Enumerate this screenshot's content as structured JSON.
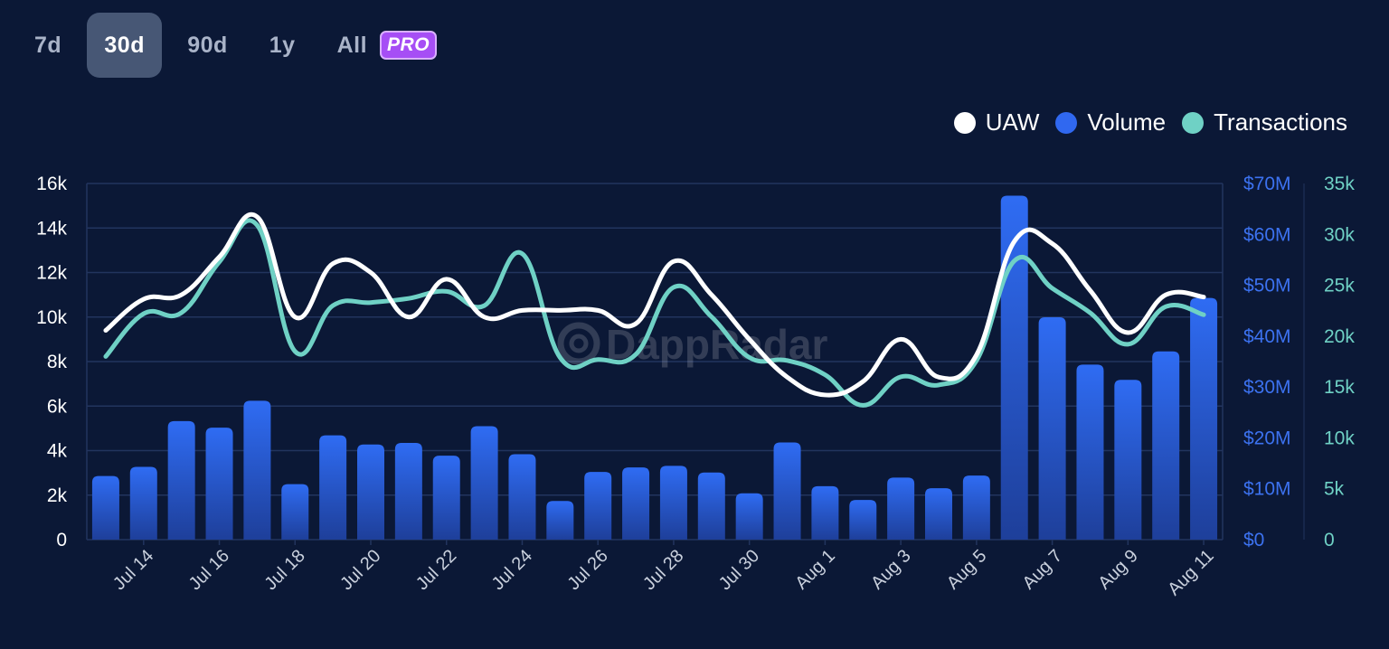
{
  "tabs": {
    "items": [
      {
        "label": "7d"
      },
      {
        "label": "30d"
      },
      {
        "label": "90d"
      },
      {
        "label": "1y"
      },
      {
        "label": "All"
      }
    ],
    "active": "30d",
    "pro_badge": "PRO"
  },
  "legend": {
    "uaw": {
      "label": "UAW",
      "color": "#ffffff"
    },
    "volume": {
      "label": "Volume",
      "color": "#3068f0"
    },
    "transactions": {
      "label": "Transactions",
      "color": "#6fd1c5"
    }
  },
  "watermark": "DappRadar",
  "chart_data": {
    "type": "bar",
    "title": "",
    "categories": [
      "Jul 13",
      "Jul 14",
      "Jul 15",
      "Jul 16",
      "Jul 17",
      "Jul 18",
      "Jul 19",
      "Jul 20",
      "Jul 21",
      "Jul 22",
      "Jul 23",
      "Jul 24",
      "Jul 25",
      "Jul 26",
      "Jul 27",
      "Jul 28",
      "Jul 29",
      "Jul 30",
      "Jul 31",
      "Aug 1",
      "Aug 2",
      "Aug 3",
      "Aug 4",
      "Aug 5",
      "Aug 6",
      "Aug 7",
      "Aug 8",
      "Aug 9",
      "Aug 10",
      "Aug 11"
    ],
    "x_tick_labels": [
      "Jul 14",
      "Jul 16",
      "Jul 18",
      "Jul 20",
      "Jul 22",
      "Jul 24",
      "Jul 26",
      "Jul 28",
      "Jul 30",
      "Aug 1",
      "Aug 3",
      "Aug 5",
      "Aug 7",
      "Aug 9",
      "Aug 11"
    ],
    "axes": {
      "uaw": {
        "range": [
          0,
          16000
        ],
        "ticks": [
          "0",
          "2k",
          "4k",
          "6k",
          "8k",
          "10k",
          "12k",
          "14k",
          "16k"
        ]
      },
      "volume": {
        "range": [
          0,
          70000000
        ],
        "ticks": [
          "$0",
          "$10M",
          "$20M",
          "$30M",
          "$40M",
          "$50M",
          "$60M",
          "$70M"
        ]
      },
      "transactions": {
        "range": [
          0,
          35000
        ],
        "ticks": [
          "0",
          "5k",
          "10k",
          "15k",
          "20k",
          "25k",
          "30k",
          "35k"
        ]
      }
    },
    "series": [
      {
        "name": "Volume",
        "type": "bar",
        "axis": "volume",
        "values": [
          12500000,
          14300000,
          23300000,
          22000000,
          27300000,
          10900000,
          20500000,
          18700000,
          19000000,
          16500000,
          22300000,
          16800000,
          7600000,
          13300000,
          14200000,
          14500000,
          13200000,
          9100000,
          19100000,
          10500000,
          7800000,
          12200000,
          10100000,
          12600000,
          67600000,
          43700000,
          34400000,
          31400000,
          37000000,
          47500000
        ]
      },
      {
        "name": "UAW",
        "type": "line",
        "axis": "uaw",
        "values": [
          9400,
          10800,
          11000,
          12700,
          14500,
          10000,
          12400,
          12000,
          10000,
          11700,
          10000,
          10300,
          10300,
          10300,
          9700,
          12500,
          11000,
          9000,
          7300,
          6500,
          7100,
          9000,
          7300,
          8300,
          13400,
          13300,
          11200,
          9300,
          11000,
          10900
        ]
      },
      {
        "name": "Transactions",
        "type": "line",
        "axis": "transactions",
        "values": [
          18000,
          22200,
          22300,
          27300,
          30900,
          18500,
          23000,
          23300,
          23700,
          24400,
          23000,
          28100,
          17900,
          17700,
          18200,
          24800,
          21900,
          17900,
          17600,
          16200,
          13200,
          16000,
          15200,
          17600,
          27400,
          24700,
          22300,
          19200,
          22900,
          22100
        ]
      }
    ]
  }
}
